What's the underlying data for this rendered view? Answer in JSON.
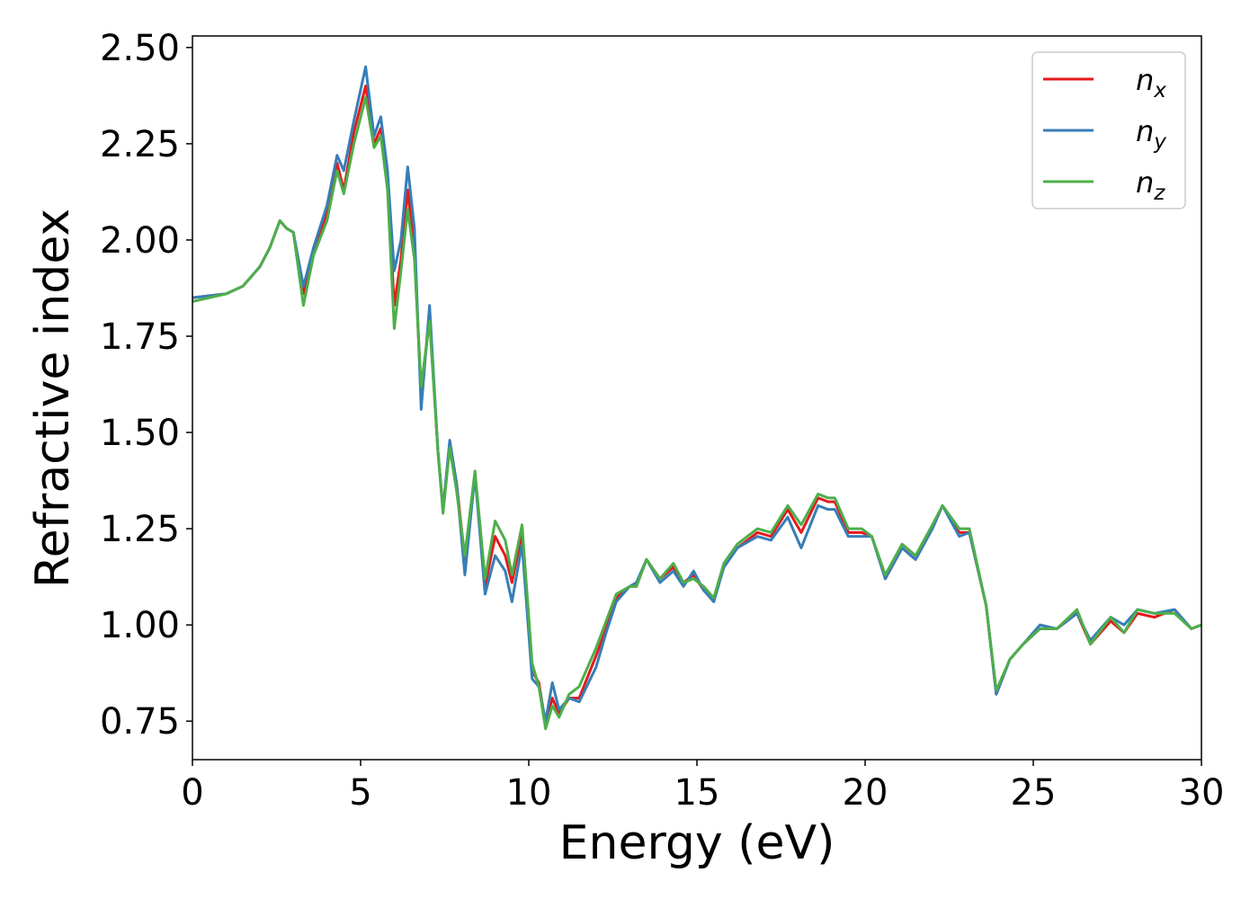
{
  "chart_data": {
    "type": "line",
    "x_label": "Energy (eV)",
    "y_label": "Refractive index",
    "xlim": [
      0,
      30
    ],
    "xticks": [
      0,
      5,
      10,
      15,
      20,
      25,
      30
    ],
    "ylim": [
      0.65,
      2.53
    ],
    "yticks": [
      0.75,
      {
        "value": 1.0,
        "label": "1.00"
      },
      1.25,
      {
        "value": 1.5,
        "label": "1.50"
      },
      1.75,
      {
        "value": 2.0,
        "label": "2.00"
      },
      2.25,
      {
        "value": 2.5,
        "label": "2.50"
      }
    ],
    "legend": "upper right",
    "x": [
      0,
      1,
      1.5,
      2,
      2.3,
      2.6,
      2.8,
      3.0,
      3.3,
      3.6,
      4.0,
      4.3,
      4.5,
      4.8,
      5.15,
      5.4,
      5.6,
      5.8,
      6.0,
      6.2,
      6.4,
      6.6,
      6.8,
      7.05,
      7.3,
      7.45,
      7.65,
      7.85,
      8.1,
      8.4,
      8.7,
      9.0,
      9.3,
      9.5,
      9.8,
      10.1,
      10.3,
      10.5,
      10.7,
      10.9,
      11.2,
      11.5,
      12.0,
      12.3,
      12.6,
      13.0,
      13.2,
      13.5,
      13.9,
      14.3,
      14.6,
      14.9,
      15.2,
      15.5,
      15.8,
      16.2,
      16.8,
      17.2,
      17.7,
      18.1,
      18.6,
      18.9,
      19.1,
      19.5,
      19.9,
      20.2,
      20.6,
      21.1,
      21.5,
      22.0,
      22.3,
      22.8,
      23.1,
      23.6,
      23.9,
      24.3,
      24.7,
      25.2,
      25.7,
      26.3,
      26.7,
      27.3,
      27.7,
      28.1,
      28.6,
      29.2,
      29.7,
      30
    ],
    "series": [
      {
        "name": "nx",
        "color": "#e41a1c",
        "values": [
          1.85,
          1.86,
          1.88,
          1.93,
          1.98,
          2.05,
          2.03,
          2.02,
          1.86,
          1.97,
          2.07,
          2.2,
          2.13,
          2.28,
          2.4,
          2.25,
          2.29,
          2.15,
          1.83,
          1.95,
          2.13,
          1.97,
          1.6,
          1.8,
          1.45,
          1.3,
          1.47,
          1.37,
          1.17,
          1.39,
          1.1,
          1.23,
          1.18,
          1.11,
          1.24,
          0.88,
          0.85,
          0.74,
          0.81,
          0.77,
          0.81,
          0.81,
          0.92,
          0.99,
          1.07,
          1.1,
          1.1,
          1.17,
          1.12,
          1.15,
          1.11,
          1.13,
          1.09,
          1.07,
          1.15,
          1.2,
          1.24,
          1.23,
          1.3,
          1.24,
          1.33,
          1.32,
          1.32,
          1.24,
          1.24,
          1.23,
          1.12,
          1.2,
          1.17,
          1.25,
          1.31,
          1.24,
          1.24,
          1.05,
          0.82,
          0.91,
          0.95,
          0.99,
          0.99,
          1.03,
          0.95,
          1.01,
          0.98,
          1.03,
          1.02,
          1.04,
          0.99,
          1.0
        ]
      },
      {
        "name": "ny",
        "color": "#377eb8",
        "values": [
          1.85,
          1.86,
          1.88,
          1.93,
          1.98,
          2.05,
          2.03,
          2.02,
          1.88,
          1.98,
          2.09,
          2.22,
          2.18,
          2.31,
          2.45,
          2.27,
          2.32,
          2.18,
          1.92,
          2.0,
          2.19,
          2.03,
          1.56,
          1.83,
          1.45,
          1.3,
          1.48,
          1.37,
          1.13,
          1.39,
          1.08,
          1.18,
          1.14,
          1.06,
          1.21,
          0.86,
          0.84,
          0.75,
          0.85,
          0.78,
          0.81,
          0.8,
          0.89,
          0.98,
          1.06,
          1.1,
          1.11,
          1.17,
          1.11,
          1.14,
          1.1,
          1.14,
          1.09,
          1.06,
          1.15,
          1.2,
          1.23,
          1.22,
          1.28,
          1.2,
          1.31,
          1.3,
          1.3,
          1.23,
          1.23,
          1.23,
          1.12,
          1.2,
          1.17,
          1.25,
          1.31,
          1.23,
          1.24,
          1.05,
          0.82,
          0.91,
          0.95,
          1.0,
          0.99,
          1.03,
          0.96,
          1.02,
          1.0,
          1.04,
          1.03,
          1.04,
          0.99,
          1.0
        ]
      },
      {
        "name": "nz",
        "color": "#4daf4a",
        "values": [
          1.84,
          1.86,
          1.88,
          1.93,
          1.98,
          2.05,
          2.03,
          2.02,
          1.83,
          1.96,
          2.05,
          2.18,
          2.12,
          2.25,
          2.37,
          2.24,
          2.27,
          2.13,
          1.77,
          1.92,
          2.08,
          1.95,
          1.62,
          1.79,
          1.45,
          1.29,
          1.46,
          1.35,
          1.18,
          1.4,
          1.12,
          1.27,
          1.22,
          1.13,
          1.26,
          0.9,
          0.84,
          0.73,
          0.79,
          0.76,
          0.82,
          0.84,
          0.94,
          1.01,
          1.08,
          1.1,
          1.1,
          1.17,
          1.12,
          1.16,
          1.11,
          1.12,
          1.1,
          1.07,
          1.16,
          1.21,
          1.25,
          1.24,
          1.31,
          1.26,
          1.34,
          1.33,
          1.33,
          1.25,
          1.25,
          1.23,
          1.13,
          1.21,
          1.18,
          1.26,
          1.31,
          1.25,
          1.25,
          1.05,
          0.83,
          0.91,
          0.95,
          0.99,
          0.99,
          1.04,
          0.95,
          1.02,
          0.98,
          1.04,
          1.03,
          1.03,
          0.99,
          1.0
        ]
      }
    ]
  }
}
